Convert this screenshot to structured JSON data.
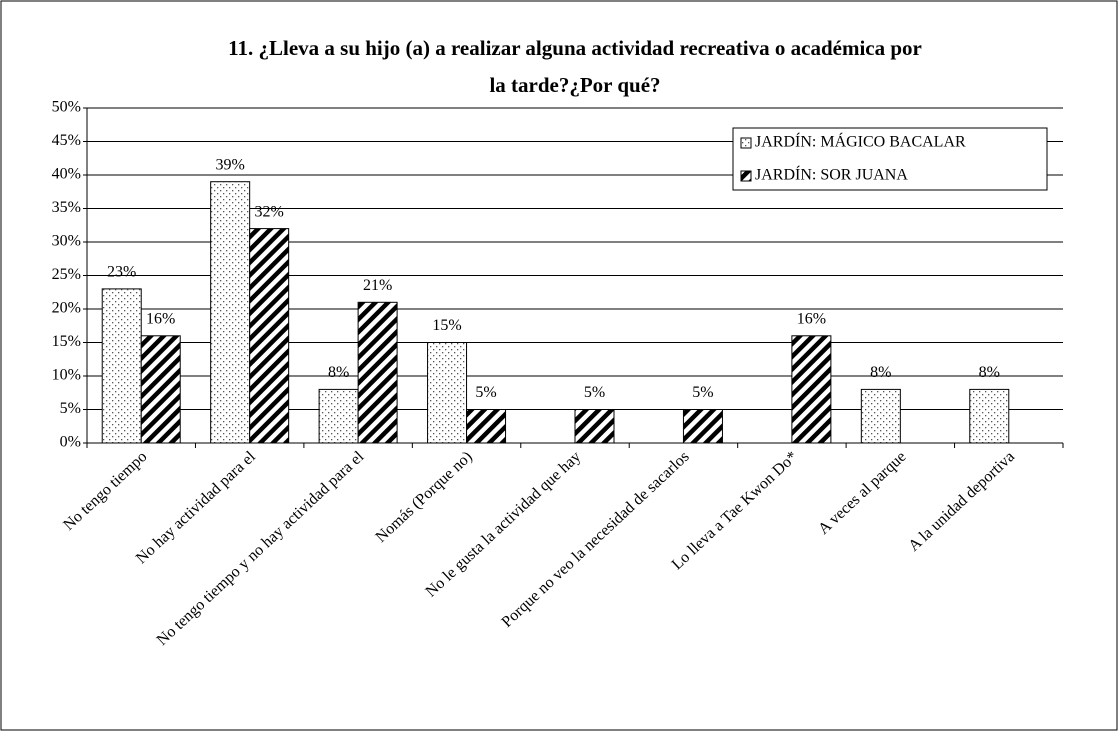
{
  "chart_data": {
    "type": "bar",
    "title": [
      "11. ¿Lleva a su hijo (a) a realizar alguna actividad recreativa o académica por",
      "la tarde?¿Por qué?"
    ],
    "categories": [
      "No tengo tiempo",
      "No hay actividad para el",
      "No tengo tiempo y no hay actividad para el",
      "Nomás (Porque no)",
      "No le gusta la actividad que hay",
      "Porque no veo la necesidad de sacarlos",
      "Lo lleva a Tae Kwon Do*",
      "A veces al parque",
      "A la unidad deportiva"
    ],
    "series": [
      {
        "name": "JARDÍN: MÁGICO BACALAR",
        "color": "dots",
        "values": [
          23,
          39,
          8,
          15,
          null,
          null,
          null,
          8,
          8
        ],
        "value_labels": [
          "23%",
          "39%",
          "8%",
          "15%",
          null,
          null,
          null,
          "8%",
          "8%"
        ]
      },
      {
        "name": "JARDÍN: SOR JUANA",
        "color": "hatch",
        "values": [
          16,
          32,
          21,
          5,
          5,
          5,
          16,
          null,
          null
        ],
        "value_labels": [
          "16%",
          "32%",
          "21%",
          "5%",
          "5%",
          "5%",
          "16%",
          null,
          null
        ]
      }
    ],
    "ylim": [
      0,
      50
    ],
    "yticks": [
      {
        "value": 0,
        "label": "0%"
      },
      {
        "value": 5,
        "label": "5%"
      },
      {
        "value": 10,
        "label": "10%"
      },
      {
        "value": 15,
        "label": "15%"
      },
      {
        "value": 20,
        "label": "20%"
      },
      {
        "value": 25,
        "label": "25%"
      },
      {
        "value": 30,
        "label": "30%"
      },
      {
        "value": 35,
        "label": "35%"
      },
      {
        "value": 40,
        "label": "40%"
      },
      {
        "value": 45,
        "label": "45%"
      },
      {
        "value": 50,
        "label": "50%"
      }
    ],
    "grid": true,
    "legend": "upper right"
  }
}
